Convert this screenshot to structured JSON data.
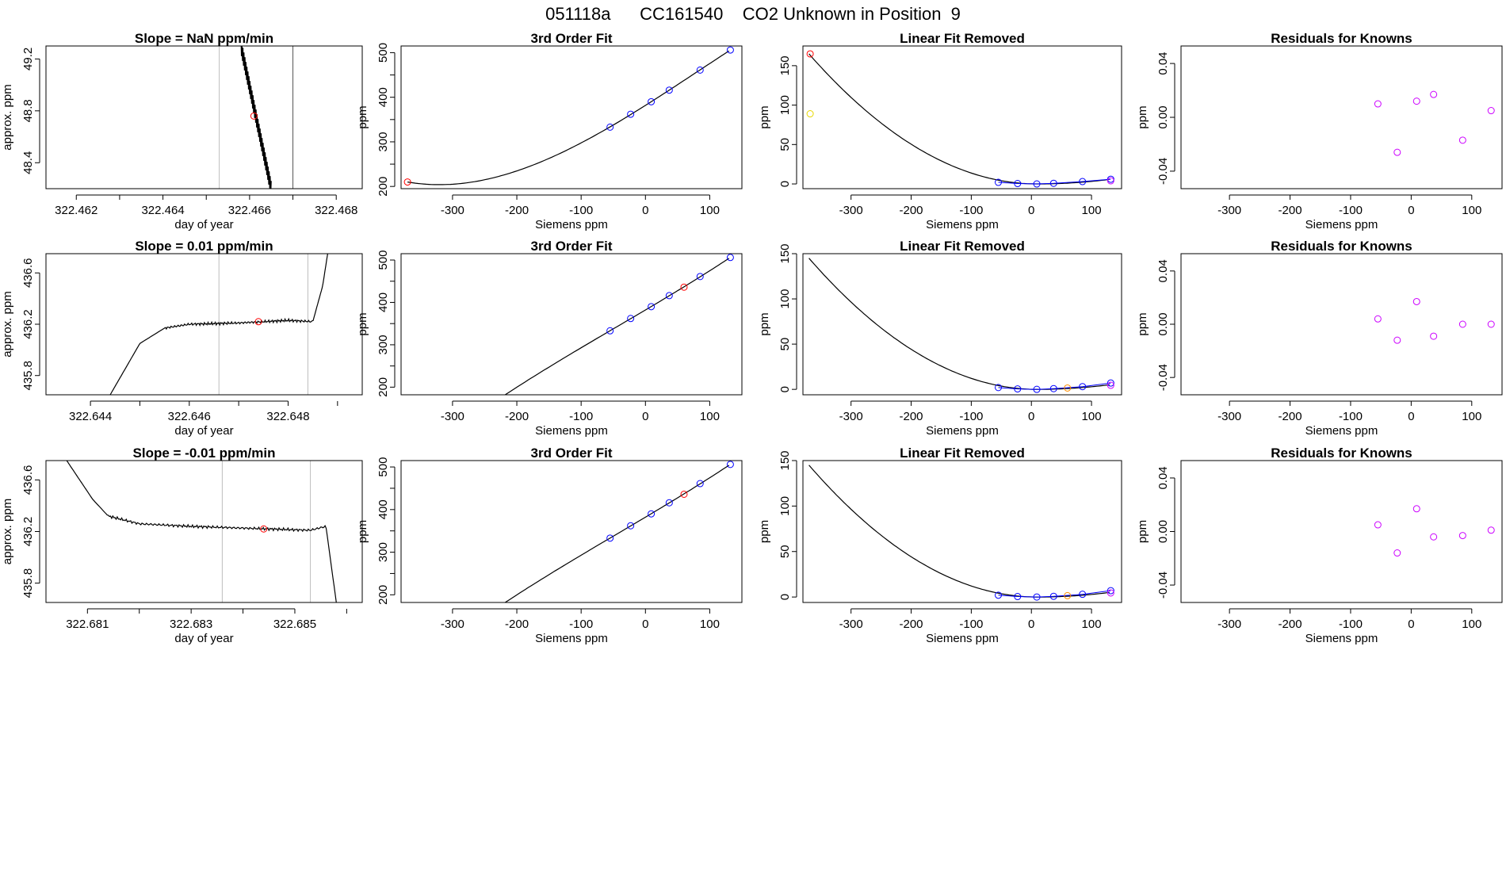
{
  "title": "051118a      CC161540    CO2 Unknown in Position  9",
  "colors": {
    "axis": "#000000",
    "curve": "#000000",
    "guide_line": "#bdbdbd",
    "marker_red": "#ff0000",
    "marker_blue": "#0000ff",
    "marker_orange": "#ff8c00",
    "marker_yellow": "#e8d700",
    "marker_magenta": "#cc00ff"
  },
  "chart_data": [
    {
      "type": "line",
      "panel": "trace-1",
      "title": "Slope =  NaN  ppm/min",
      "xlabel": "day of year",
      "ylabel": "approx. ppm",
      "xlim": [
        322.4613,
        322.4686
      ],
      "ylim": [
        48.2,
        49.3
      ],
      "xticks": [
        "322.462",
        "322.464",
        "322.466",
        "322.468"
      ],
      "xtick_values": [
        322.462,
        322.464,
        322.466,
        322.468
      ],
      "yticks": [
        "48.4",
        "48.8",
        "49.2"
      ],
      "ytick_values": [
        48.4,
        48.8,
        49.2
      ],
      "guides": [
        322.4653,
        322.467
      ],
      "guide_dark": [
        false,
        true
      ],
      "trace": {
        "style": "oscillating",
        "x_start": 322.4658,
        "x_end": 322.4665,
        "y_start": 49.3,
        "y_end": 48.2
      },
      "marker": {
        "x": 322.4661,
        "y": 48.76,
        "color": "red"
      }
    },
    {
      "type": "line",
      "panel": "trace-2",
      "title": "Slope =  0.01  ppm/min",
      "xlabel": "day of year",
      "ylabel": "approx. ppm",
      "xlim": [
        322.6431,
        322.6495
      ],
      "ylim": [
        435.65,
        436.75
      ],
      "xticks": [
        "322.644",
        "322.646",
        "322.648"
      ],
      "xtick_values": [
        322.644,
        322.646,
        322.648
      ],
      "yticks": [
        "435.8",
        "436.2",
        "436.6"
      ],
      "ytick_values": [
        435.8,
        436.2,
        436.6
      ],
      "guides": [
        322.6466,
        322.6484
      ],
      "guide_dark": [
        false,
        false
      ],
      "trace": {
        "style": "plateau",
        "x": [
          322.6444,
          322.645,
          322.6455,
          322.646,
          322.647,
          322.648,
          322.6485,
          322.6487,
          322.6488
        ],
        "y": [
          435.65,
          436.05,
          436.17,
          436.2,
          436.21,
          436.23,
          436.22,
          436.5,
          436.75
        ]
      },
      "marker": {
        "x": 322.6474,
        "y": 436.22,
        "color": "red"
      }
    },
    {
      "type": "line",
      "panel": "trace-3",
      "title": "Slope =  -0.01  ppm/min",
      "xlabel": "day of year",
      "ylabel": "approx. ppm",
      "xlim": [
        322.6802,
        322.6863
      ],
      "ylim": [
        435.65,
        436.75
      ],
      "xticks": [
        "322.681",
        "322.683",
        "322.685"
      ],
      "xtick_values": [
        322.681,
        322.683,
        322.685
      ],
      "yticks": [
        "435.8",
        "436.2",
        "436.6"
      ],
      "ytick_values": [
        435.8,
        436.2,
        436.6
      ],
      "guides": [
        322.6836,
        322.6853
      ],
      "guide_dark": [
        false,
        false
      ],
      "trace": {
        "style": "plateau",
        "x": [
          322.6806,
          322.6811,
          322.6814,
          322.682,
          322.683,
          322.6845,
          322.6853,
          322.6856,
          322.6858
        ],
        "y": [
          436.75,
          436.45,
          436.32,
          436.26,
          436.24,
          436.22,
          436.21,
          436.24,
          435.65
        ]
      },
      "marker": {
        "x": 322.6844,
        "y": 436.22,
        "color": "red"
      }
    },
    {
      "type": "scatter",
      "panel": "fit-1",
      "title": "3rd Order Fit",
      "xlabel": "Siemens ppm",
      "ylabel": "ppm",
      "xlim": [
        -380,
        150
      ],
      "ylim": [
        195,
        515
      ],
      "xticks": [
        "-300",
        "-200",
        "-100",
        "0",
        "100"
      ],
      "xtick_values": [
        -300,
        -200,
        -100,
        0,
        100
      ],
      "yticks": [
        "200",
        "300",
        "400",
        "500"
      ],
      "ytick_values": [
        200,
        300,
        400,
        500
      ],
      "curve": "cubic_fit",
      "curve_x_range": [
        -370,
        130
      ],
      "points": [
        {
          "x": -370,
          "y": 210,
          "color": "red"
        },
        {
          "x": -55,
          "y": 333,
          "color": "blue"
        },
        {
          "x": -23,
          "y": 362,
          "color": "blue"
        },
        {
          "x": 9,
          "y": 390,
          "color": "blue"
        },
        {
          "x": 37,
          "y": 416,
          "color": "blue"
        },
        {
          "x": 85,
          "y": 461,
          "color": "blue"
        },
        {
          "x": 132,
          "y": 506,
          "color": "blue"
        }
      ]
    },
    {
      "type": "scatter",
      "panel": "fit-2",
      "title": "3rd Order Fit",
      "xlabel": "Siemens ppm",
      "ylabel": "ppm",
      "xlim": [
        -380,
        150
      ],
      "ylim": [
        182,
        515
      ],
      "xticks": [
        "-300",
        "-200",
        "-100",
        "0",
        "100"
      ],
      "xtick_values": [
        -300,
        -200,
        -100,
        0,
        100
      ],
      "yticks": [
        "200",
        "300",
        "400",
        "500"
      ],
      "ytick_values": [
        200,
        300,
        400,
        500
      ],
      "curve": "cubic_fit",
      "curve_x_range": [
        -370,
        130
      ],
      "points": [
        {
          "x": -55,
          "y": 333,
          "color": "blue"
        },
        {
          "x": -23,
          "y": 362,
          "color": "blue"
        },
        {
          "x": 9,
          "y": 390,
          "color": "blue"
        },
        {
          "x": 37,
          "y": 416,
          "color": "blue"
        },
        {
          "x": 60,
          "y": 436,
          "color": "red"
        },
        {
          "x": 85,
          "y": 461,
          "color": "blue"
        },
        {
          "x": 132,
          "y": 506,
          "color": "blue"
        }
      ]
    },
    {
      "type": "scatter",
      "panel": "fit-3",
      "title": "3rd Order Fit",
      "xlabel": "Siemens ppm",
      "ylabel": "ppm",
      "xlim": [
        -380,
        150
      ],
      "ylim": [
        182,
        515
      ],
      "xticks": [
        "-300",
        "-200",
        "-100",
        "0",
        "100"
      ],
      "xtick_values": [
        -300,
        -200,
        -100,
        0,
        100
      ],
      "yticks": [
        "200",
        "300",
        "400",
        "500"
      ],
      "ytick_values": [
        200,
        300,
        400,
        500
      ],
      "curve": "cubic_fit",
      "curve_x_range": [
        -370,
        130
      ],
      "points": [
        {
          "x": -55,
          "y": 333,
          "color": "blue"
        },
        {
          "x": -23,
          "y": 362,
          "color": "blue"
        },
        {
          "x": 9,
          "y": 390,
          "color": "blue"
        },
        {
          "x": 37,
          "y": 416,
          "color": "blue"
        },
        {
          "x": 60,
          "y": 436,
          "color": "red"
        },
        {
          "x": 85,
          "y": 461,
          "color": "blue"
        },
        {
          "x": 132,
          "y": 506,
          "color": "blue"
        }
      ]
    },
    {
      "type": "scatter",
      "panel": "resid-1",
      "title": "Linear Fit Removed",
      "xlabel": "Siemens ppm",
      "ylabel": "ppm",
      "xlim": [
        -380,
        150
      ],
      "ylim": [
        -6,
        175
      ],
      "xticks": [
        "-300",
        "-200",
        "-100",
        "0",
        "100"
      ],
      "xtick_values": [
        -300,
        -200,
        -100,
        0,
        100
      ],
      "yticks": [
        "0",
        "50",
        "100",
        "150"
      ],
      "ytick_values": [
        0,
        50,
        100,
        150
      ],
      "curve": "quadratic_residual",
      "curve_x_range": [
        -370,
        130
      ],
      "points": [
        {
          "x": -368,
          "y": 165,
          "color": "red"
        },
        {
          "x": -368,
          "y": 89,
          "color": "yellow"
        },
        {
          "x": -55,
          "y": 2,
          "color": "blue"
        },
        {
          "x": -23,
          "y": 0.5,
          "color": "blue"
        },
        {
          "x": 9,
          "y": 0,
          "color": "blue"
        },
        {
          "x": 37,
          "y": 0.8,
          "color": "blue"
        },
        {
          "x": 85,
          "y": 3,
          "color": "blue"
        },
        {
          "x": 132,
          "y": 6,
          "color": "blue"
        },
        {
          "x": 132,
          "y": 4,
          "color": "magenta"
        }
      ]
    },
    {
      "type": "scatter",
      "panel": "resid-2",
      "title": "Linear Fit Removed",
      "xlabel": "Siemens ppm",
      "ylabel": "ppm",
      "xlim": [
        -380,
        150
      ],
      "ylim": [
        -6,
        150
      ],
      "xticks": [
        "-300",
        "-200",
        "-100",
        "0",
        "100"
      ],
      "xtick_values": [
        -300,
        -200,
        -100,
        0,
        100
      ],
      "yticks": [
        "0",
        "50",
        "100",
        "150"
      ],
      "ytick_values": [
        0,
        50,
        100,
        150
      ],
      "curve": "quadratic_residual",
      "curve_x_range": [
        -370,
        130
      ],
      "points": [
        {
          "x": -55,
          "y": 2,
          "color": "blue"
        },
        {
          "x": -23,
          "y": 0.5,
          "color": "blue"
        },
        {
          "x": 9,
          "y": 0,
          "color": "blue"
        },
        {
          "x": 37,
          "y": 0.8,
          "color": "blue"
        },
        {
          "x": 60,
          "y": 1.5,
          "color": "orange"
        },
        {
          "x": 85,
          "y": 3,
          "color": "blue"
        },
        {
          "x": 132,
          "y": 7,
          "color": "blue"
        },
        {
          "x": 132,
          "y": 4.5,
          "color": "magenta"
        }
      ]
    },
    {
      "type": "scatter",
      "panel": "resid-3",
      "title": "Linear Fit Removed",
      "xlabel": "Siemens ppm",
      "ylabel": "ppm",
      "xlim": [
        -380,
        150
      ],
      "ylim": [
        -6,
        150
      ],
      "xticks": [
        "-300",
        "-200",
        "-100",
        "0",
        "100"
      ],
      "xtick_values": [
        -300,
        -200,
        -100,
        0,
        100
      ],
      "yticks": [
        "0",
        "50",
        "100",
        "150"
      ],
      "ytick_values": [
        0,
        50,
        100,
        150
      ],
      "curve": "quadratic_residual",
      "curve_x_range": [
        -370,
        130
      ],
      "points": [
        {
          "x": -55,
          "y": 2,
          "color": "blue"
        },
        {
          "x": -23,
          "y": 0.5,
          "color": "blue"
        },
        {
          "x": 9,
          "y": 0,
          "color": "blue"
        },
        {
          "x": 37,
          "y": 0.8,
          "color": "blue"
        },
        {
          "x": 60,
          "y": 1.5,
          "color": "orange"
        },
        {
          "x": 85,
          "y": 3,
          "color": "blue"
        },
        {
          "x": 132,
          "y": 7,
          "color": "blue"
        },
        {
          "x": 132,
          "y": 4.5,
          "color": "magenta"
        }
      ]
    },
    {
      "type": "scatter",
      "panel": "known-1",
      "title": "Residuals for Knowns",
      "xlabel": "Siemens ppm",
      "ylabel": "ppm",
      "xlim": [
        -380,
        150
      ],
      "ylim": [
        -0.053,
        0.053
      ],
      "xticks": [
        "-300",
        "-200",
        "-100",
        "0",
        "100"
      ],
      "xtick_values": [
        -300,
        -200,
        -100,
        0,
        100
      ],
      "yticks": [
        "-0.04",
        "0.00",
        "0.04"
      ],
      "ytick_values": [
        -0.04,
        0.0,
        0.04
      ],
      "points": [
        {
          "x": -55,
          "y": 0.01,
          "color": "magenta"
        },
        {
          "x": -23,
          "y": -0.026,
          "color": "magenta"
        },
        {
          "x": 9,
          "y": 0.012,
          "color": "magenta"
        },
        {
          "x": 37,
          "y": 0.017,
          "color": "magenta"
        },
        {
          "x": 85,
          "y": -0.017,
          "color": "magenta"
        },
        {
          "x": 132,
          "y": 0.005,
          "color": "magenta"
        }
      ]
    },
    {
      "type": "scatter",
      "panel": "known-2",
      "title": "Residuals for Knowns",
      "xlabel": "Siemens ppm",
      "ylabel": "ppm",
      "xlim": [
        -380,
        150
      ],
      "ylim": [
        -0.053,
        0.053
      ],
      "xticks": [
        "-300",
        "-200",
        "-100",
        "0",
        "100"
      ],
      "xtick_values": [
        -300,
        -200,
        -100,
        0,
        100
      ],
      "yticks": [
        "-0.04",
        "0.00",
        "0.04"
      ],
      "ytick_values": [
        -0.04,
        0.0,
        0.04
      ],
      "points": [
        {
          "x": -55,
          "y": 0.004,
          "color": "magenta"
        },
        {
          "x": -23,
          "y": -0.012,
          "color": "magenta"
        },
        {
          "x": 9,
          "y": 0.017,
          "color": "magenta"
        },
        {
          "x": 37,
          "y": -0.009,
          "color": "magenta"
        },
        {
          "x": 85,
          "y": 0.0,
          "color": "magenta"
        },
        {
          "x": 132,
          "y": 0.0,
          "color": "magenta"
        }
      ]
    },
    {
      "type": "scatter",
      "panel": "known-3",
      "title": "Residuals for Knowns",
      "xlabel": "Siemens ppm",
      "ylabel": "ppm",
      "xlim": [
        -380,
        150
      ],
      "ylim": [
        -0.053,
        0.053
      ],
      "xticks": [
        "-300",
        "-200",
        "-100",
        "0",
        "100"
      ],
      "xtick_values": [
        -300,
        -200,
        -100,
        0,
        100
      ],
      "yticks": [
        "-0.04",
        "0.00",
        "0.04"
      ],
      "ytick_values": [
        -0.04,
        0.0,
        0.04
      ],
      "points": [
        {
          "x": -55,
          "y": 0.005,
          "color": "magenta"
        },
        {
          "x": -23,
          "y": -0.016,
          "color": "magenta"
        },
        {
          "x": 9,
          "y": 0.017,
          "color": "magenta"
        },
        {
          "x": 37,
          "y": -0.004,
          "color": "magenta"
        },
        {
          "x": 85,
          "y": -0.003,
          "color": "magenta"
        },
        {
          "x": 132,
          "y": 0.001,
          "color": "magenta"
        }
      ]
    }
  ]
}
